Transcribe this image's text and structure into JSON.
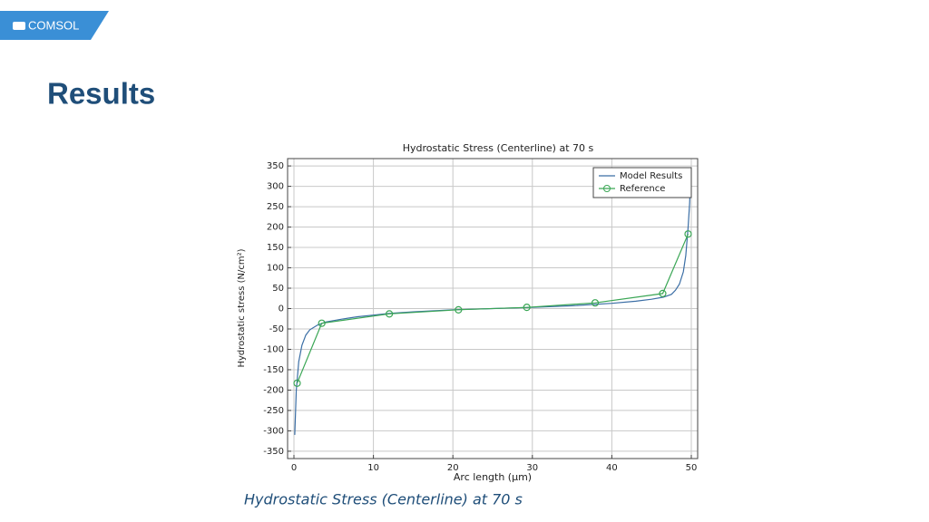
{
  "logo": "COMSOL",
  "slide_title": "Results",
  "caption": "Hydrostatic Stress (Centerline) at 70 s",
  "chart_data": {
    "type": "line",
    "title": "Hydrostatic Stress (Centerline) at 70 s",
    "x_label": "Arc length (µm)",
    "y_label": "Hydrostatic stress (N/cm²)",
    "xlim": [
      -0.8,
      50.8
    ],
    "ylim": [
      -368,
      368
    ],
    "xticks": [
      0,
      10,
      20,
      30,
      40,
      50
    ],
    "yticks": [
      -350,
      -300,
      -250,
      -200,
      -150,
      -100,
      -50,
      0,
      50,
      100,
      150,
      200,
      250,
      300,
      350
    ],
    "grid": true,
    "legend": "upper right",
    "series": [
      {
        "name": "Model Results",
        "color": "#3b6ea5",
        "marker": false,
        "x": [
          0.1,
          0.3,
          0.6,
          1,
          1.5,
          2,
          3,
          4,
          6,
          8,
          10,
          12,
          15,
          20,
          25,
          30,
          35,
          40,
          43,
          45,
          46.5,
          47.5,
          48,
          48.5,
          49,
          49.3,
          49.6,
          49.8,
          49.9
        ],
        "values": [
          -310,
          -200,
          -130,
          -90,
          -65,
          -52,
          -40,
          -33,
          -26,
          -20,
          -16,
          -12,
          -8,
          -3,
          0,
          3,
          7,
          13,
          18,
          23,
          28,
          35,
          45,
          60,
          90,
          130,
          200,
          260,
          320
        ]
      },
      {
        "name": "Reference",
        "color": "#3aa655",
        "marker": true,
        "x": [
          0.4,
          3.5,
          12,
          20.7,
          29.3,
          37.9,
          46.4,
          49.6
        ],
        "values": [
          -183,
          -36,
          -13,
          -3,
          3,
          14,
          37,
          183
        ]
      }
    ]
  }
}
